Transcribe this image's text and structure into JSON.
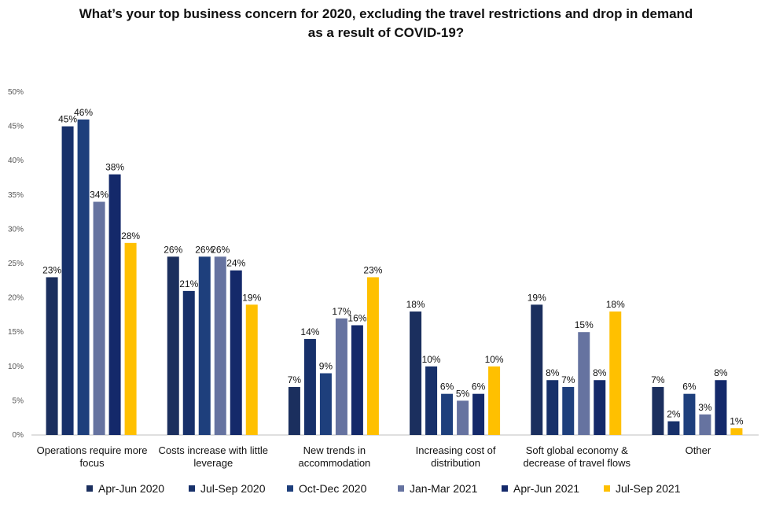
{
  "chart_data": {
    "type": "bar",
    "title": [
      "What’s your top business concern for 2020, excluding the travel restrictions and drop in demand",
      "as a result of COVID-19?"
    ],
    "categories": [
      [
        "Operations require more",
        "focus"
      ],
      [
        "Costs increase with little",
        "leverage"
      ],
      [
        "New trends in",
        "accommodation"
      ],
      [
        "Increasing cost of",
        "distribution"
      ],
      [
        "Soft global economy &",
        "decrease of travel flows"
      ],
      [
        "Other"
      ]
    ],
    "series": [
      {
        "name": "Apr-Jun 2020",
        "color": "#1b2f5e",
        "values": [
          23,
          26,
          7,
          18,
          19,
          7
        ],
        "labels": [
          "23%",
          "26%",
          "7%",
          "18%",
          "19%",
          "7%"
        ]
      },
      {
        "name": "Jul-Sep 2020",
        "color": "#17306a",
        "values": [
          45,
          21,
          14,
          10,
          8,
          2
        ],
        "labels": [
          "45%",
          "21%",
          "14%",
          "10%",
          "8%",
          "2%"
        ]
      },
      {
        "name": "Oct-Dec 2020",
        "color": "#1e3f7c",
        "values": [
          46,
          26,
          9,
          6,
          7,
          6
        ],
        "labels": [
          "46%",
          "26%",
          "9%",
          "6%",
          "7%",
          "6%"
        ]
      },
      {
        "name": "Jan-Mar 2021",
        "color": "#6673a0",
        "values": [
          34,
          26,
          17,
          5,
          15,
          3
        ],
        "labels": [
          "34%",
          "26%",
          "17%",
          "5%",
          "15%",
          "3%"
        ]
      },
      {
        "name": "Apr-Jun 2021",
        "color": "#14296a",
        "values": [
          38,
          24,
          16,
          6,
          8,
          8
        ],
        "labels": [
          "38%",
          "24%",
          "16%",
          "6%",
          "8%",
          "8%"
        ]
      },
      {
        "name": "Jul-Sep 2021",
        "color": "#ffc000",
        "values": [
          28,
          19,
          23,
          10,
          18,
          1
        ],
        "labels": [
          "28%",
          "19%",
          "23%",
          "10%",
          "18%",
          "1%"
        ]
      }
    ],
    "yticks": [
      "0%",
      "5%",
      "10%",
      "15%",
      "20%",
      "25%",
      "30%",
      "35%",
      "40%",
      "45%",
      "50%"
    ],
    "ylim": [
      0,
      50
    ],
    "grid": false,
    "legend": "bottom"
  }
}
